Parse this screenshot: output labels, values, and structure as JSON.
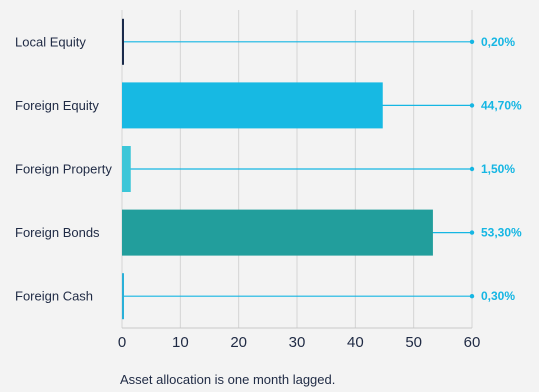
{
  "chart_data": {
    "type": "bar",
    "orientation": "horizontal",
    "categories": [
      "Local Equity",
      "Foreign Equity",
      "Foreign Property",
      "Foreign Bonds",
      "Foreign Cash"
    ],
    "values": [
      0.2,
      44.7,
      1.5,
      53.3,
      0.3
    ],
    "value_labels": [
      "0,20%",
      "44,70%",
      "1,50%",
      "53,30%",
      "0,30%"
    ],
    "colors": [
      "#1a2a4a",
      "#17b9e3",
      "#3cc6d8",
      "#229e9c",
      "#2ab0d8"
    ],
    "xlim": [
      0,
      60
    ],
    "xticks": [
      0,
      10,
      20,
      30,
      40,
      50,
      60
    ],
    "grid": "vertical",
    "title": "",
    "xlabel": "",
    "ylabel": ""
  },
  "footnote": "Asset allocation is one month lagged."
}
